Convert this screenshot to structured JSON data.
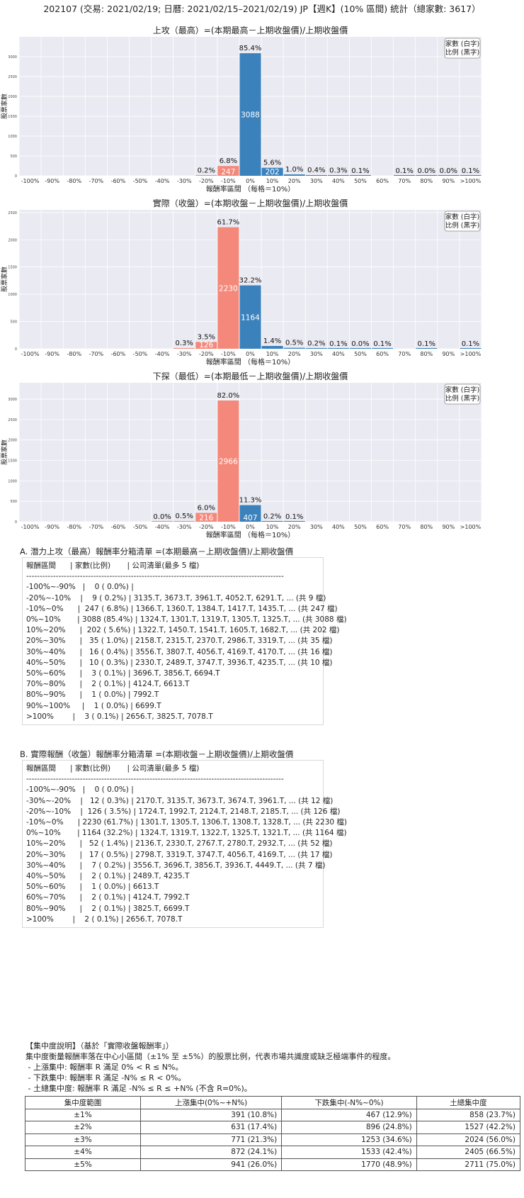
{
  "page_title": "202107 (交易: 2021/02/19; 日曆: 2021/02/15–2021/02/19) JP【週K】(10% 區間) 統計（總家數: 3617）",
  "chart_data": [
    {
      "type": "bar",
      "title": "上攻（最高）=(本期最高－上期收盤價)/上期收盤價",
      "xlabel": "報酬率區間 （每格＝10%）",
      "ylabel": "股票家數",
      "legend": [
        "家數 (白字)",
        "比例 (黑字)"
      ],
      "legend_position": "top-right",
      "categories": [
        "-100%",
        "-90%",
        "-80%",
        "-70%",
        "-60%",
        "-50%",
        "-40%",
        "-30%",
        "-20%",
        "-10%",
        "0%",
        "10%",
        "20%",
        "30%",
        "40%",
        "50%",
        "60%",
        "70%",
        "80%",
        "90%",
        ">100%"
      ],
      "values": [
        0,
        0,
        0,
        0,
        0,
        0,
        0,
        0,
        9,
        247,
        3088,
        202,
        35,
        16,
        10,
        3,
        0,
        2,
        1,
        1,
        3
      ],
      "pct_labels": [
        "",
        "",
        "",
        "",
        "",
        "",
        "",
        "",
        "0.2%",
        "6.8%",
        "85.4%",
        "5.6%",
        "1.0%",
        "0.4%",
        "0.3%",
        "0.1%",
        "",
        "0.1%",
        "0.0%",
        "0.0%",
        "0.1%"
      ],
      "yticks": [
        0,
        500,
        1000,
        1500,
        2000,
        2500,
        3000
      ],
      "ylim": [
        0,
        3500
      ],
      "grid": true
    },
    {
      "type": "bar",
      "title": "實際（收盤）=(本期收盤－上期收盤價)/上期收盤價",
      "xlabel": "報酬率區間 （每格＝10%）",
      "ylabel": "股票家數",
      "legend": [
        "家數 (白字)",
        "比例 (黑字)"
      ],
      "legend_position": "top-right",
      "categories": [
        "-100%",
        "-90%",
        "-80%",
        "-70%",
        "-60%",
        "-50%",
        "-40%",
        "-30%",
        "-20%",
        "-10%",
        "0%",
        "10%",
        "20%",
        "30%",
        "40%",
        "50%",
        "60%",
        "70%",
        "80%",
        "90%",
        ">100%"
      ],
      "values": [
        0,
        0,
        0,
        0,
        0,
        0,
        0,
        12,
        126,
        2230,
        1164,
        52,
        17,
        7,
        2,
        1,
        2,
        0,
        2,
        0,
        2
      ],
      "pct_labels": [
        "",
        "",
        "",
        "",
        "",
        "",
        "",
        "0.3%",
        "3.5%",
        "61.7%",
        "32.2%",
        "1.4%",
        "0.5%",
        "0.2%",
        "0.1%",
        "0.0%",
        "0.1%",
        "",
        "0.1%",
        "",
        "0.1%"
      ],
      "yticks": [
        0,
        500,
        1000,
        1500,
        2000,
        2500
      ],
      "ylim": [
        0,
        2550
      ],
      "grid": true
    },
    {
      "type": "bar",
      "title": "下探（最低）=(本期最低－上期收盤價)/上期收盤價",
      "xlabel": "報酬率區間 （每格＝10%）",
      "ylabel": "股票家數",
      "legend": [
        "家數 (白字)",
        "比例 (黑字)"
      ],
      "legend_position": "top-right",
      "categories": [
        "-100%",
        "-90%",
        "-80%",
        "-70%",
        "-60%",
        "-50%",
        "-40%",
        "-30%",
        "-20%",
        "-10%",
        "0%",
        "10%",
        "20%",
        "30%",
        "40%",
        "50%",
        "60%",
        "70%",
        "80%",
        "90%",
        ">100%"
      ],
      "values": [
        0,
        0,
        0,
        0,
        0,
        0,
        1,
        17,
        216,
        2966,
        407,
        7,
        3,
        0,
        0,
        0,
        0,
        0,
        0,
        0,
        0
      ],
      "pct_labels": [
        "",
        "",
        "",
        "",
        "",
        "",
        "0.0%",
        "0.5%",
        "6.0%",
        "82.0%",
        "11.3%",
        "0.2%",
        "0.1%",
        "",
        "",
        "",
        "",
        "",
        "",
        "",
        ""
      ],
      "yticks": [
        0,
        500,
        1000,
        1500,
        2000,
        2500,
        3000
      ],
      "ylim": [
        0,
        3400
      ],
      "grid": true
    }
  ],
  "section_a": {
    "title": "A. 潛力上攻（最高）報酬率分箱清單 =(本期最高－上期收盤價)/上期收盤價",
    "lines": [
      "報酬區間      | 家數(比例)       | 公司清單(最多 5 檔)",
      "------------------------------------------------------------------------------------------------",
      "-100%~-90%   |    0 ( 0.0%) |",
      "-20%~-10%    |    9 ( 0.2%) | 3135.T, 3673.T, 3961.T, 4052.T, 6291.T, ... (共 9 檔)",
      "-10%~0%      |  247 ( 6.8%) | 1366.T, 1360.T, 1384.T, 1417.T, 1435.T, ... (共 247 檔)",
      "0%~10%       | 3088 (85.4%) | 1324.T, 1301.T, 1319.T, 1305.T, 1325.T, ... (共 3088 檔)",
      "10%~20%      |  202 ( 5.6%) | 1322.T, 1450.T, 1541.T, 1605.T, 1682.T, ... (共 202 檔)",
      "20%~30%      |   35 ( 1.0%) | 2158.T, 2315.T, 2370.T, 2986.T, 3319.T, ... (共 35 檔)",
      "30%~40%      |   16 ( 0.4%) | 3556.T, 3807.T, 4056.T, 4169.T, 4170.T, ... (共 16 檔)",
      "40%~50%      |   10 ( 0.3%) | 2330.T, 2489.T, 3747.T, 3936.T, 4235.T, ... (共 10 檔)",
      "50%~60%      |    3 ( 0.1%) | 3696.T, 3856.T, 6694.T",
      "70%~80%      |    2 ( 0.1%) | 4124.T, 6613.T",
      "80%~90%      |    1 ( 0.0%) | 7992.T",
      "90%~100%     |    1 ( 0.0%) | 6699.T",
      ">100%        |    3 ( 0.1%) | 2656.T, 3825.T, 7078.T"
    ]
  },
  "section_b": {
    "title": "B. 實際報酬（收盤）報酬率分箱清單 =(本期收盤－上期收盤價)/上期收盤價",
    "lines": [
      "報酬區間      | 家數(比例)       | 公司清單(最多 5 檔)",
      "------------------------------------------------------------------------------------------------",
      "-100%~-90%   |    0 ( 0.0%) |",
      "-30%~-20%    |   12 ( 0.3%) | 2170.T, 3135.T, 3673.T, 3674.T, 3961.T, ... (共 12 檔)",
      "-20%~-10%    |  126 ( 3.5%) | 1724.T, 1992.T, 2124.T, 2148.T, 2185.T, ... (共 126 檔)",
      "-10%~0%      | 2230 (61.7%) | 1301.T, 1305.T, 1306.T, 1308.T, 1328.T, ... (共 2230 檔)",
      "0%~10%       | 1164 (32.2%) | 1324.T, 1319.T, 1322.T, 1325.T, 1321.T, ... (共 1164 檔)",
      "10%~20%      |   52 ( 1.4%) | 2136.T, 2330.T, 2767.T, 2780.T, 2932.T, ... (共 52 檔)",
      "20%~30%      |   17 ( 0.5%) | 2798.T, 3319.T, 3747.T, 4056.T, 4169.T, ... (共 17 檔)",
      "30%~40%      |    7 ( 0.2%) | 3556.T, 3696.T, 3856.T, 3936.T, 4449.T, ... (共 7 檔)",
      "40%~50%      |    2 ( 0.1%) | 2489.T, 4235.T",
      "50%~60%      |    1 ( 0.0%) | 6613.T",
      "60%~70%      |    2 ( 0.1%) | 4124.T, 7992.T",
      "80%~90%      |    2 ( 0.1%) | 3825.T, 6699.T",
      ">100%        |    2 ( 0.1%) | 2656.T, 7078.T"
    ]
  },
  "concentration": {
    "heading": "【集中度說明】（基於「實際收盤報酬率」）",
    "desc": "集中度衡量報酬率落在中心小區間（±1% 至 ±5%）的股票比例，代表市場共識度或缺乏極端事件的程度。",
    "rules": [
      " - 上漲集中: 報酬率 R 滿足 0% < R ≤ N%。",
      " - 下跌集中: 報酬率 R 滿足 -N% ≤ R < 0%。",
      " - 土總集中度: 報酬率 R 滿足 -N% ≤ R ≤ +N% (不含 R=0%)。"
    ],
    "columns": [
      "集中度範圍",
      "上漲集中(0%~+N%)",
      "下跌集中(-N%~0%)",
      "土總集中度"
    ],
    "rows": [
      [
        "±1%",
        "391 (10.8%)",
        "467 (12.9%)",
        "858 (23.7%)"
      ],
      [
        "±2%",
        "631 (17.4%)",
        "896 (24.8%)",
        "1527 (42.2%)"
      ],
      [
        "±3%",
        "771 (21.3%)",
        "1253 (34.6%)",
        "2024 (56.0%)"
      ],
      [
        "±4%",
        "872 (24.1%)",
        "1533 (42.4%)",
        "2405 (66.5%)"
      ],
      [
        "±5%",
        "941 (26.0%)",
        "1770 (48.9%)",
        "2711 (75.0%)"
      ]
    ]
  },
  "colors": {
    "positive": "#3b82bd",
    "negative": "#f4897b",
    "plot_bg": "#eaeaf2",
    "grid": "#ffffff"
  }
}
